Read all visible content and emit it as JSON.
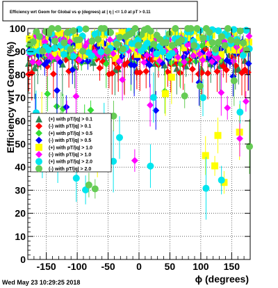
{
  "chart_data": {
    "type": "scatter",
    "title": "Efficiency wrt Geom for Global vs φ (degrees) at | η | <= 1.0 at pT > 0.11",
    "xlabel": "ϕ (degrees)",
    "ylabel": "Efficiency wrt Geom (%)",
    "xlim": [
      -180,
      180
    ],
    "ylim": [
      0,
      100
    ],
    "x_ticks": [
      -150,
      -100,
      -50,
      0,
      50,
      100,
      150
    ],
    "y_ticks": [
      0,
      10,
      20,
      30,
      40,
      50,
      60,
      70,
      80,
      90,
      100
    ],
    "grid": true,
    "legend_position": "left-middle",
    "series": [
      {
        "name": "(+) with pT/|q| > 0.1",
        "color": "#2e8b57",
        "marker": "triangle-up"
      },
      {
        "name": "(-) with pT/|q| > 0.1",
        "color": "#ff0000",
        "marker": "diamond"
      },
      {
        "name": "(+) with pT/|q| > 0.5",
        "color": "#33dd33",
        "marker": "diamond"
      },
      {
        "name": "(-) with pT/|q| > 0.5",
        "color": "#0000ff",
        "marker": "diamond"
      },
      {
        "name": "(+) with pT/|q| > 1.0",
        "color": "#ffff00",
        "marker": "square"
      },
      {
        "name": "(-) with pT/|q| > 1.0",
        "color": "#ff00ff",
        "marker": "diamond"
      },
      {
        "name": "(+) with pT/|q| > 2.0",
        "color": "#00e5ee",
        "marker": "circle"
      },
      {
        "name": "(-) with pT/|q| > 2.0",
        "color": "#66cc55",
        "marker": "circle"
      }
    ]
  },
  "timestamp": "Wed May 23 10:29:25 2018"
}
